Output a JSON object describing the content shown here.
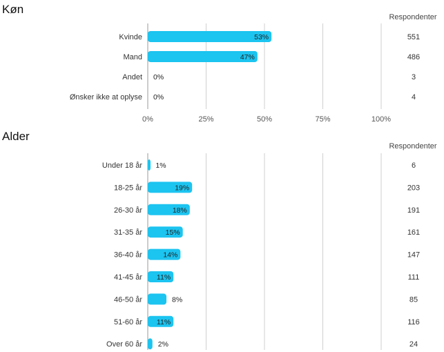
{
  "charts": [
    {
      "title": "Køn",
      "respondents_header": "Respondenter",
      "x_ticks": [
        "0%",
        "25%",
        "50%",
        "75%",
        "100%"
      ]
    },
    {
      "title": "Alder",
      "respondents_header": "Respondenter"
    }
  ],
  "colors": {
    "bar": "#1cc4f0"
  },
  "chart_data": [
    {
      "type": "bar",
      "orientation": "horizontal",
      "title": "Køn",
      "categories": [
        "Kvinde",
        "Mand",
        "Andet",
        "Ønsker ikke at oplyse"
      ],
      "values": [
        53,
        47,
        0,
        0
      ],
      "value_labels": [
        "53%",
        "47%",
        "0%",
        "0%"
      ],
      "respondents": [
        551,
        486,
        3,
        4
      ],
      "xlim": [
        0,
        100
      ],
      "x_ticks": [
        "0%",
        "25%",
        "50%",
        "75%",
        "100%"
      ],
      "grid": true
    },
    {
      "type": "bar",
      "orientation": "horizontal",
      "title": "Alder",
      "categories": [
        "Under 18 år",
        "18-25 år",
        "26-30 år",
        "31-35 år",
        "36-40 år",
        "41-45 år",
        "46-50 år",
        "51-60 år",
        "Over 60 år"
      ],
      "values": [
        1,
        19,
        18,
        15,
        14,
        11,
        8,
        11,
        2
      ],
      "value_labels": [
        "1%",
        "19%",
        "18%",
        "15%",
        "14%",
        "11%",
        "8%",
        "11%",
        "2%"
      ],
      "respondents": [
        6,
        203,
        191,
        161,
        147,
        111,
        85,
        116,
        24
      ],
      "xlim": [
        0,
        100
      ],
      "grid": true
    }
  ]
}
